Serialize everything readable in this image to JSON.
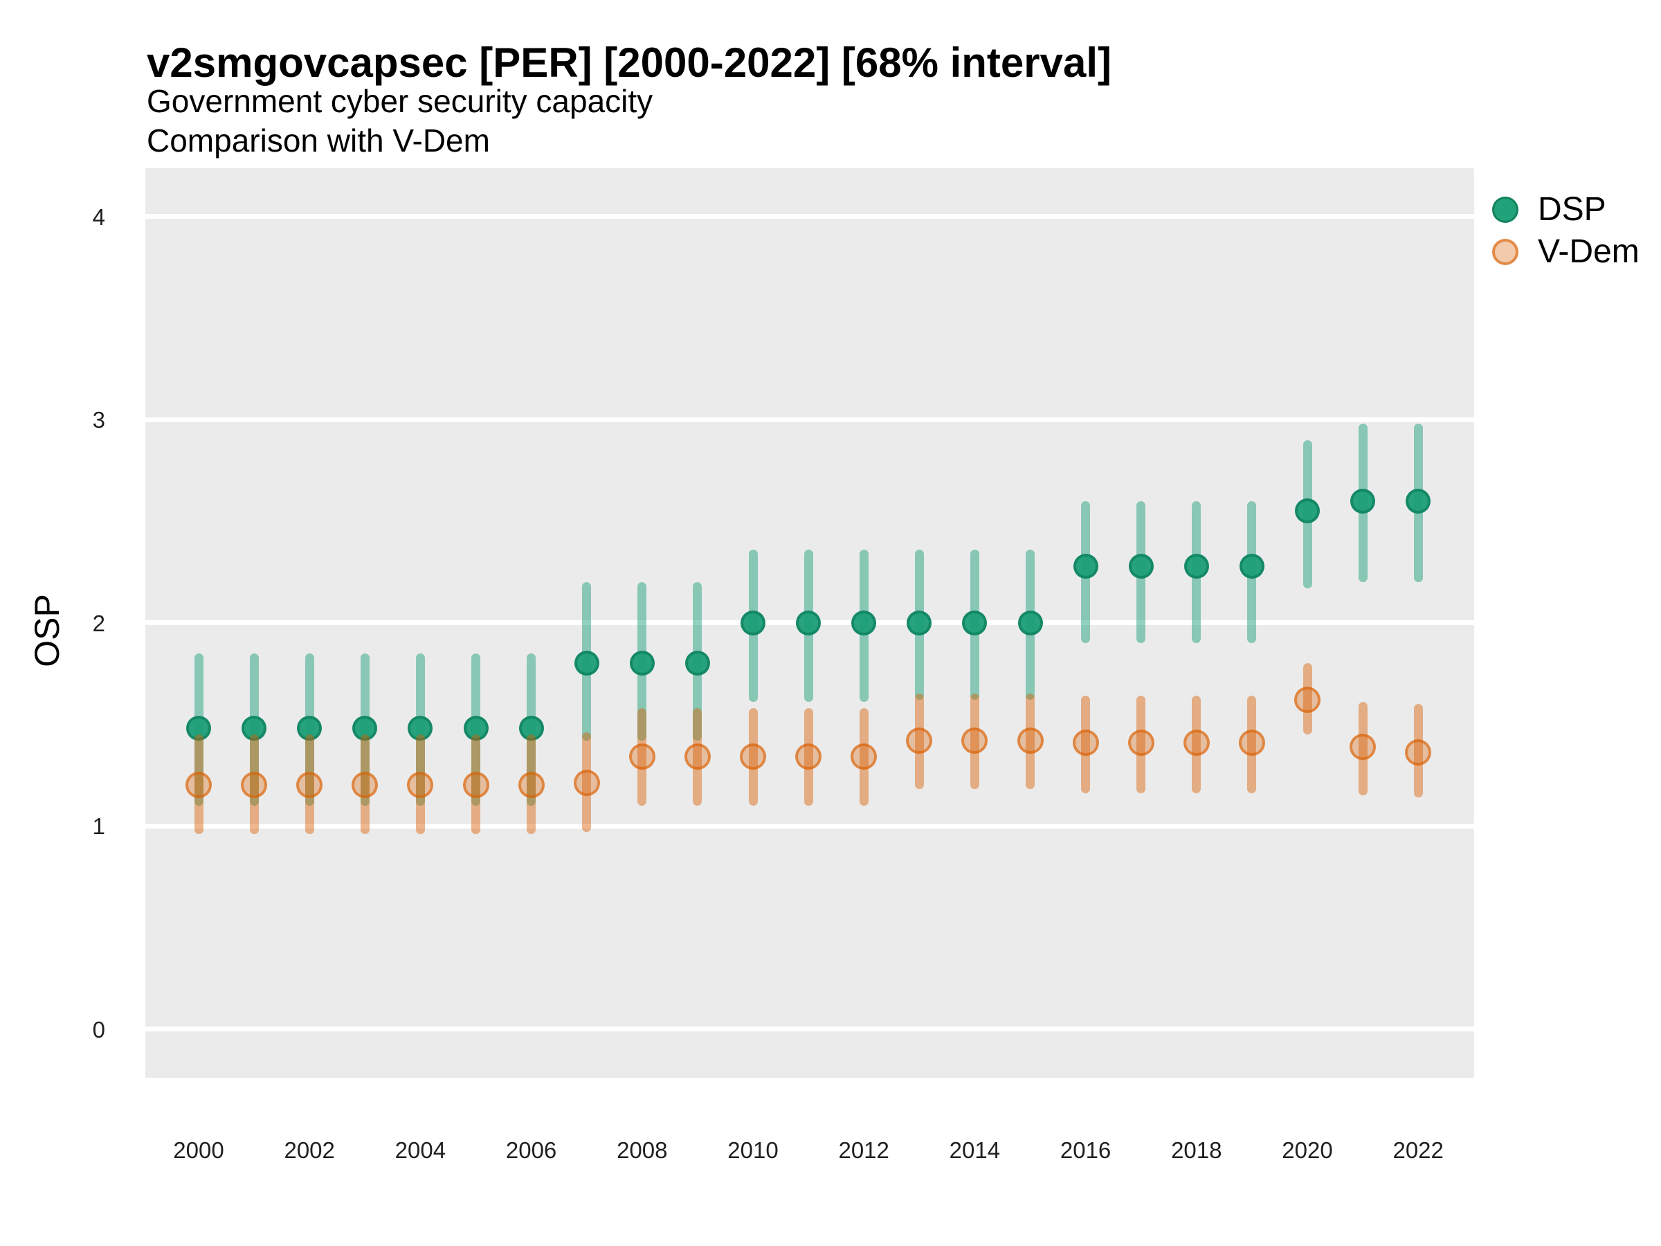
{
  "title": "v2smgovcapsec [PER] [2000-2022] [68% interval]",
  "subtitle_line1": "Government cyber security capacity",
  "subtitle_line2": "Comparison with V-Dem",
  "y_axis_label": "OSP",
  "legend": [
    {
      "label": "DSP",
      "color": "#1B9E77"
    },
    {
      "label": "V-Dem",
      "color": "#D95F02"
    }
  ],
  "colors": {
    "panel_background": "#EBEBEB",
    "gridline": "#FFFFFF",
    "dsp": "#1B9E77",
    "vdem": "#D95F02"
  },
  "chart_data": {
    "type": "pointrange",
    "title": "v2smgovcapsec [PER] [2000-2022] [68% interval]",
    "subtitle": [
      "Government cyber security capacity",
      "Comparison with V-Dem"
    ],
    "interval": "68%",
    "xlabel": "",
    "ylabel": "OSP",
    "ylim": [
      -0.24,
      4.24
    ],
    "y_ticks": [
      0,
      1,
      2,
      3,
      4
    ],
    "x_ticks": [
      2000,
      2002,
      2004,
      2006,
      2008,
      2010,
      2012,
      2014,
      2016,
      2018,
      2020,
      2022
    ],
    "grid": "major-horizontal-only",
    "legend_position": "right",
    "years": [
      2000,
      2001,
      2002,
      2003,
      2004,
      2005,
      2006,
      2007,
      2008,
      2009,
      2010,
      2011,
      2012,
      2013,
      2014,
      2015,
      2016,
      2017,
      2018,
      2019,
      2020,
      2021,
      2022
    ],
    "series": [
      {
        "name": "DSP",
        "color": "#1B9E77",
        "values": [
          1.48,
          1.48,
          1.48,
          1.48,
          1.48,
          1.48,
          1.48,
          1.8,
          1.8,
          1.8,
          2.0,
          2.0,
          2.0,
          2.0,
          2.0,
          2.0,
          2.28,
          2.28,
          2.28,
          2.28,
          2.55,
          2.6,
          2.6
        ],
        "low": [
          1.1,
          1.1,
          1.1,
          1.1,
          1.1,
          1.1,
          1.1,
          1.42,
          1.42,
          1.42,
          1.61,
          1.61,
          1.61,
          1.62,
          1.62,
          1.62,
          1.9,
          1.9,
          1.9,
          1.9,
          2.17,
          2.2,
          2.2
        ],
        "high": [
          1.85,
          1.85,
          1.85,
          1.85,
          1.85,
          1.85,
          1.85,
          2.2,
          2.2,
          2.2,
          2.36,
          2.36,
          2.36,
          2.36,
          2.36,
          2.36,
          2.6,
          2.6,
          2.6,
          2.6,
          2.9,
          2.98,
          2.98
        ]
      },
      {
        "name": "V-Dem",
        "color": "#D95F02",
        "values": [
          1.2,
          1.2,
          1.2,
          1.2,
          1.2,
          1.2,
          1.2,
          1.21,
          1.34,
          1.34,
          1.34,
          1.34,
          1.34,
          1.42,
          1.42,
          1.42,
          1.41,
          1.41,
          1.41,
          1.41,
          1.62,
          1.39,
          1.36
        ],
        "low": [
          0.96,
          0.96,
          0.96,
          0.96,
          0.96,
          0.96,
          0.96,
          0.97,
          1.1,
          1.1,
          1.1,
          1.1,
          1.1,
          1.18,
          1.18,
          1.18,
          1.16,
          1.16,
          1.16,
          1.16,
          1.45,
          1.15,
          1.14
        ],
        "high": [
          1.45,
          1.45,
          1.45,
          1.45,
          1.45,
          1.45,
          1.45,
          1.46,
          1.58,
          1.58,
          1.58,
          1.58,
          1.58,
          1.65,
          1.65,
          1.65,
          1.64,
          1.64,
          1.64,
          1.64,
          1.8,
          1.61,
          1.6
        ]
      }
    ]
  }
}
